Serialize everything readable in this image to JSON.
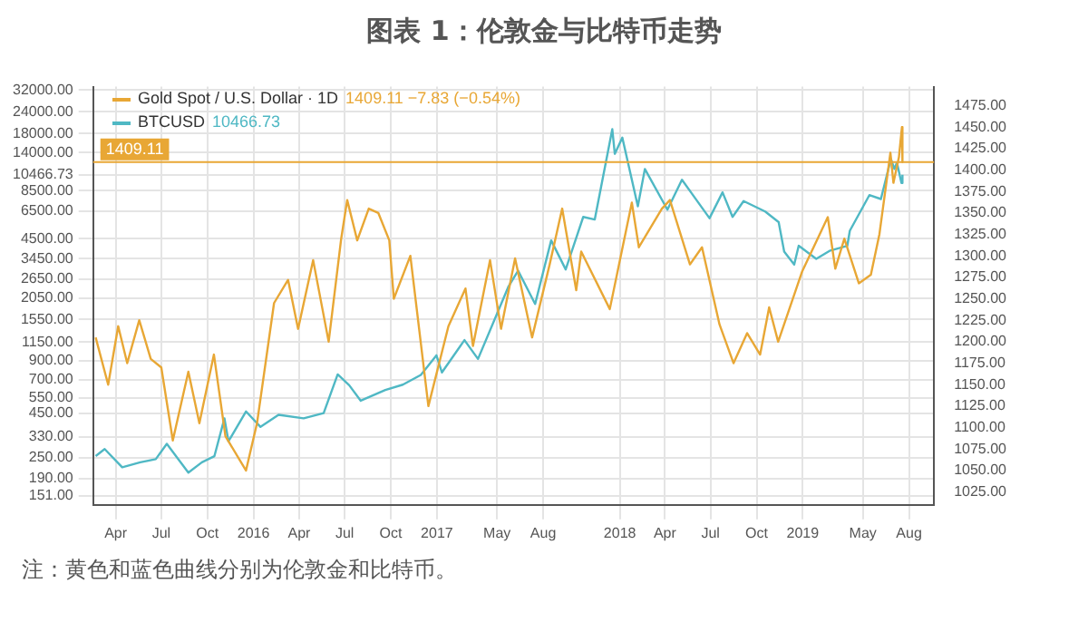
{
  "chart_data": {
    "type": "line",
    "title": "图表 1：伦敦金与比特币走势",
    "series": [
      {
        "name": "Gold Spot / U.S. Dollar · 1D",
        "color": "#e8a735",
        "axis": "y2",
        "x": [
          "2015-02-20",
          "2015-03-17",
          "2015-04-06",
          "2015-04-24",
          "2015-05-18",
          "2015-06-10",
          "2015-07-01",
          "2015-07-24",
          "2015-08-24",
          "2015-09-15",
          "2015-10-14",
          "2015-11-06",
          "2015-12-17",
          "2016-01-08",
          "2016-02-11",
          "2016-03-10",
          "2016-03-30",
          "2016-04-29",
          "2016-05-30",
          "2016-06-24",
          "2016-07-06",
          "2016-07-26",
          "2016-08-18",
          "2016-09-06",
          "2016-09-28",
          "2016-10-07",
          "2016-11-09",
          "2016-12-15",
          "2017-01-24",
          "2017-02-27",
          "2017-03-14",
          "2017-04-17",
          "2017-05-09",
          "2017-06-06",
          "2017-07-10",
          "2017-08-14",
          "2017-09-08",
          "2017-10-06",
          "2017-10-16",
          "2017-12-12",
          "2018-01-25",
          "2018-02-08",
          "2018-03-26",
          "2018-04-11",
          "2018-05-21",
          "2018-06-14",
          "2018-07-19",
          "2018-08-16",
          "2018-09-12",
          "2018-10-08",
          "2018-10-26",
          "2018-11-13",
          "2018-12-31",
          "2019-02-20",
          "2019-03-07",
          "2019-03-25",
          "2019-04-23",
          "2019-05-17",
          "2019-06-03",
          "2019-06-25",
          "2019-07-01",
          "2019-07-12",
          "2019-07-18",
          "2019-07-19"
        ],
        "values": [
          1205,
          1150,
          1218,
          1175,
          1225,
          1180,
          1170,
          1085,
          1165,
          1105,
          1185,
          1090,
          1050,
          1105,
          1245,
          1272,
          1215,
          1295,
          1200,
          1320,
          1365,
          1318,
          1355,
          1350,
          1318,
          1250,
          1300,
          1125,
          1218,
          1262,
          1195,
          1295,
          1215,
          1297,
          1205,
          1290,
          1355,
          1260,
          1305,
          1238,
          1362,
          1310,
          1355,
          1365,
          1290,
          1310,
          1220,
          1175,
          1210,
          1185,
          1240,
          1200,
          1282,
          1345,
          1285,
          1320,
          1268,
          1278,
          1325,
          1420,
          1385,
          1415,
          1450,
          1409.11
        ]
      },
      {
        "name": "BTCUSD",
        "color": "#4fb8c4",
        "x": [
          "2015-02-20",
          "2015-03-10",
          "2015-04-14",
          "2015-05-20",
          "2015-06-20",
          "2015-07-12",
          "2015-08-24",
          "2015-09-20",
          "2015-10-15",
          "2015-11-04",
          "2015-11-12",
          "2015-12-17",
          "2016-01-15",
          "2016-02-20",
          "2016-04-10",
          "2016-05-20",
          "2016-06-17",
          "2016-07-10",
          "2016-08-02",
          "2016-09-20",
          "2016-10-25",
          "2016-11-30",
          "2016-12-31",
          "2017-01-11",
          "2017-02-25",
          "2017-03-24",
          "2017-05-24",
          "2017-06-12",
          "2017-07-16",
          "2017-08-17",
          "2017-09-15",
          "2017-10-20",
          "2017-11-12",
          "2017-11-28",
          "2017-12-17",
          "2017-12-22",
          "2018-01-06",
          "2018-02-06",
          "2018-02-20",
          "2018-04-06",
          "2018-05-05",
          "2018-06-29",
          "2018-07-25",
          "2018-08-14",
          "2018-09-05",
          "2018-10-18",
          "2018-11-14",
          "2018-11-25",
          "2018-12-15",
          "2018-12-24",
          "2019-01-28",
          "2019-02-25",
          "2019-03-31",
          "2019-04-05",
          "2019-05-14",
          "2019-06-06",
          "2019-06-26",
          "2019-07-03",
          "2019-07-08",
          "2019-07-17",
          "2019-07-19"
        ],
        "values": [
          255,
          280,
          220,
          235,
          245,
          300,
          205,
          235,
          255,
          420,
          310,
          460,
          375,
          440,
          420,
          450,
          750,
          650,
          530,
          610,
          655,
          745,
          965,
          770,
          1180,
          920,
          2400,
          2950,
          1900,
          4400,
          3000,
          6000,
          5800,
          10000,
          19100,
          13800,
          17100,
          6900,
          11300,
          6600,
          9800,
          5900,
          8300,
          6000,
          7400,
          6450,
          5600,
          3800,
          3200,
          4100,
          3450,
          3850,
          4100,
          5000,
          8000,
          7600,
          12900,
          11300,
          12300,
          9400,
          10466.73
        ]
      }
    ],
    "log": "y",
    "xlim": [
      "2015-02-15",
      "2019-09-20"
    ],
    "xticks": [
      {
        "value": "2015-04-01",
        "label": "Apr"
      },
      {
        "value": "2015-07-01",
        "label": "Jul"
      },
      {
        "value": "2015-10-01",
        "label": "Oct"
      },
      {
        "value": "2016-01-01",
        "label": "2016"
      },
      {
        "value": "2016-04-01",
        "label": "Apr"
      },
      {
        "value": "2016-07-01",
        "label": "Jul"
      },
      {
        "value": "2016-10-01",
        "label": "Oct"
      },
      {
        "value": "2017-01-01",
        "label": "2017"
      },
      {
        "value": "2017-05-01",
        "label": "May"
      },
      {
        "value": "2017-08-01",
        "label": "Aug"
      },
      {
        "value": "2018-01-01",
        "label": "2018"
      },
      {
        "value": "2018-04-01",
        "label": "Apr"
      },
      {
        "value": "2018-07-01",
        "label": "Jul"
      },
      {
        "value": "2018-10-01",
        "label": "Oct"
      },
      {
        "value": "2019-01-01",
        "label": "2019"
      },
      {
        "value": "2019-05-01",
        "label": "May"
      },
      {
        "value": "2019-08-01",
        "label": "Aug"
      }
    ],
    "ylim": [
      134,
      33500
    ],
    "yticks": [
      {
        "value": 151,
        "label": "151.00"
      },
      {
        "value": 190,
        "label": "190.00"
      },
      {
        "value": 250,
        "label": "250.00"
      },
      {
        "value": 330,
        "label": "330.00"
      },
      {
        "value": 450,
        "label": "450.00"
      },
      {
        "value": 550,
        "label": "550.00"
      },
      {
        "value": 700,
        "label": "700.00"
      },
      {
        "value": 900,
        "label": "900.00"
      },
      {
        "value": 1150,
        "label": "1150.00"
      },
      {
        "value": 1550,
        "label": "1550.00"
      },
      {
        "value": 2050,
        "label": "2050.00"
      },
      {
        "value": 2650,
        "label": "2650.00"
      },
      {
        "value": 3450,
        "label": "3450.00"
      },
      {
        "value": 4500,
        "label": "4500.00"
      },
      {
        "value": 6500,
        "label": "6500.00"
      },
      {
        "value": 8500,
        "label": "8500.00"
      },
      10466.73,
      {
        "value": 14000,
        "label": "14000.00"
      },
      {
        "value": 18000,
        "label": "18000.00"
      },
      {
        "value": 24000,
        "label": "24000.00"
      },
      {
        "value": 32000,
        "label": "32000.00"
      }
    ],
    "y2lim": [
      1010,
      1497
    ],
    "y2ticks": [
      {
        "value": 1025,
        "label": "1025.00"
      },
      {
        "value": 1050,
        "label": "1050.00"
      },
      {
        "value": 1075,
        "label": "1075.00"
      },
      {
        "value": 1100,
        "label": "1100.00"
      },
      {
        "value": 1125,
        "label": "1125.00"
      },
      {
        "value": 1150,
        "label": "1150.00"
      },
      {
        "value": 1175,
        "label": "1175.00"
      },
      {
        "value": 1200,
        "label": "1200.00"
      },
      {
        "value": 1225,
        "label": "1225.00"
      },
      {
        "value": 1250,
        "label": "1250.00"
      },
      {
        "value": 1275,
        "label": "1275.00"
      },
      {
        "value": 1300,
        "label": "1300.00"
      },
      {
        "value": 1325,
        "label": "1325.00"
      },
      {
        "value": 1350,
        "label": "1350.00"
      },
      {
        "value": 1375,
        "label": "1375.00"
      },
      {
        "value": 1400,
        "label": "1400.00"
      },
      {
        "value": 1425,
        "label": "1425.00"
      },
      {
        "value": 1450,
        "label": "1450.00"
      },
      {
        "value": 1475,
        "label": "1475.00"
      }
    ],
    "ref_lines": [
      {
        "axis": "y2",
        "value": 1409.11,
        "label": "1409.11",
        "color": "#e8a735"
      }
    ],
    "annotations": [
      "1409.11 −7.83 (−0.54%)",
      "10466.73",
      "注：黄色和蓝色曲线分别为伦敦金和比特币。"
    ],
    "grid": true,
    "legend": "top left",
    "marker": "none",
    "line_style": "solid"
  }
}
